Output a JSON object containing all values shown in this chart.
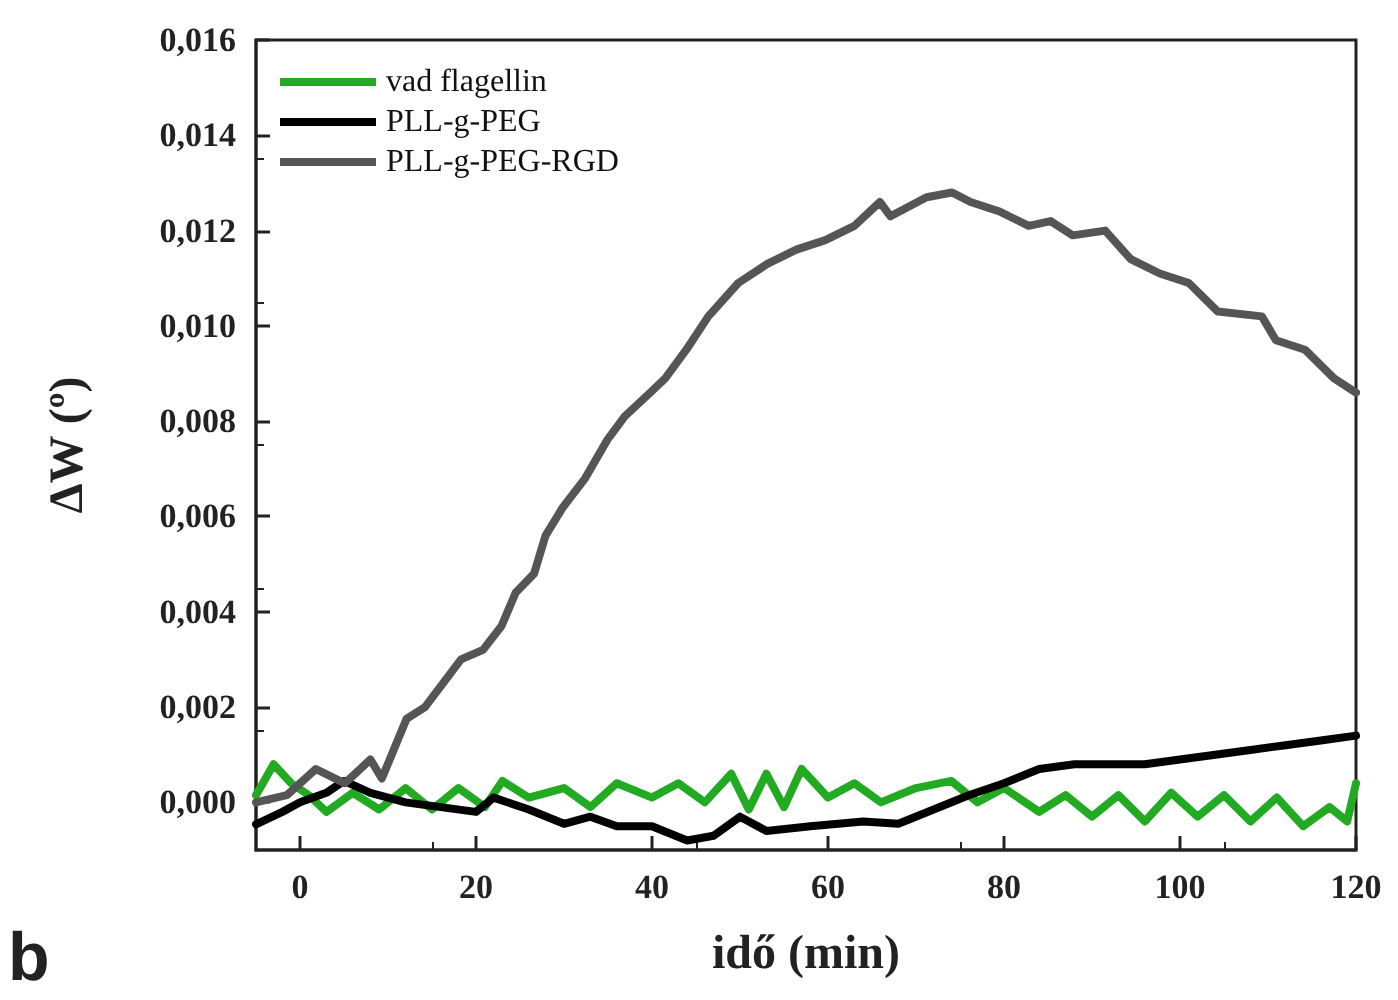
{
  "chart_data": {
    "type": "line",
    "xlabel": "idő (min)",
    "ylabel": "ΔW (º)",
    "annotations": [
      "b"
    ],
    "xlim": [
      -5,
      120
    ],
    "xticks": [
      0,
      20,
      40,
      60,
      80,
      100,
      120
    ],
    "ylim": [
      -0.001,
      0.016
    ],
    "yticks": [
      {
        "value": 0,
        "label": "0,000"
      },
      {
        "value": 0.002,
        "label": "0,002"
      },
      {
        "value": 0.004,
        "label": "0,004"
      },
      {
        "value": 0.006,
        "label": "0,006"
      },
      {
        "value": 0.008,
        "label": "0,008"
      },
      {
        "value": 0.01,
        "label": "0,010"
      },
      {
        "value": 0.012,
        "label": "0,012"
      },
      {
        "value": 0.014,
        "label": "0,014"
      },
      {
        "value": 0.016,
        "label": "0,016"
      }
    ],
    "grid": false,
    "legend": "top left",
    "marker": "none",
    "line_style": "solid",
    "series": [
      {
        "name": "vad flagellin",
        "color": "#22aa22",
        "x": [
          -5,
          -3,
          -1,
          1,
          3,
          6,
          9,
          12,
          15,
          18,
          21,
          23,
          26,
          30,
          33,
          36,
          40,
          43,
          46,
          49,
          51,
          53,
          55,
          57,
          60,
          63,
          66,
          70,
          74,
          77,
          80,
          84,
          87,
          90,
          93,
          96,
          99,
          102,
          105,
          108,
          111,
          114,
          117,
          119,
          120
        ],
        "values": [
          0.00015,
          0.0008,
          0.0004,
          0.00015,
          -0.0002,
          0.0002,
          -0.00015,
          0.0003,
          -0.00015,
          0.0003,
          -0.0001,
          0.00045,
          0.0001,
          0.0003,
          -0.0001,
          0.0004,
          0.0001,
          0.0004,
          0,
          0.0006,
          -0.00015,
          0.0006,
          -0.0001,
          0.0007,
          0.0001,
          0.0004,
          0,
          0.0003,
          0.00045,
          0,
          0.0003,
          -0.0002,
          0.00015,
          -0.0003,
          0.00015,
          -0.0004,
          0.0002,
          -0.0003,
          0.00015,
          -0.0004,
          0.0001,
          -0.0005,
          -0.0001,
          -0.0004,
          0.0004
        ]
      },
      {
        "name": "PLL-g-PEG",
        "color": "#000000",
        "x": [
          -5,
          -2,
          0,
          3,
          5,
          8,
          12,
          16,
          20,
          22,
          26,
          30,
          33,
          36,
          40,
          44,
          47,
          50,
          53,
          58,
          64,
          68,
          72,
          76,
          80,
          84,
          88,
          92,
          96,
          100,
          104,
          108,
          112,
          116,
          120
        ],
        "values": [
          -0.00046,
          -0.0002,
          0,
          0.0002,
          0.00045,
          0.0002,
          0,
          -0.0001,
          -0.0002,
          0.0001,
          -0.00015,
          -0.00045,
          -0.0003,
          -0.0005,
          -0.0005,
          -0.0008,
          -0.0007,
          -0.0003,
          -0.0006,
          -0.0005,
          -0.0004,
          -0.00045,
          -0.00015,
          0.00015,
          0.0004,
          0.0007,
          0.0008,
          0.0008,
          0.0008,
          0.0009,
          0.001,
          0.0011,
          0.0012,
          0.0013,
          0.0014
        ]
      },
      {
        "name": "PLL-g-PEG-RGD",
        "color": "#555555",
        "x": [
          -5,
          -1.5,
          1.8,
          5.1,
          8,
          9.3,
          12.1,
          14.2,
          18.3,
          20.8,
          22.9,
          24.5,
          26.6,
          27.9,
          29.9,
          32.4,
          34.9,
          36.9,
          39.8,
          41.5,
          43.9,
          46.4,
          49.8,
          53.1,
          56.4,
          59.7,
          63,
          65.9,
          67.1,
          71.2,
          74.1,
          76.2,
          79.5,
          82.8,
          85.3,
          87.8,
          91.5,
          94.4,
          97.7,
          101,
          104.3,
          109.3,
          110.9,
          114.2,
          117.5,
          120
        ],
        "values": [
          0,
          0.00015,
          0.0007,
          0.0004,
          0.0009,
          0.0005,
          0.00175,
          0.002,
          0.003,
          0.0032,
          0.0037,
          0.0044,
          0.0048,
          0.0056,
          0.0062,
          0.0068,
          0.0076,
          0.0081,
          0.0086,
          0.0089,
          0.0095,
          0.0102,
          0.0109,
          0.0113,
          0.0116,
          0.0118,
          0.0121,
          0.0126,
          0.0123,
          0.0127,
          0.0128,
          0.0126,
          0.0124,
          0.0121,
          0.0122,
          0.0119,
          0.012,
          0.0114,
          0.0111,
          0.0109,
          0.0103,
          0.0102,
          0.0097,
          0.0095,
          0.0089,
          0.0086
        ]
      }
    ]
  }
}
